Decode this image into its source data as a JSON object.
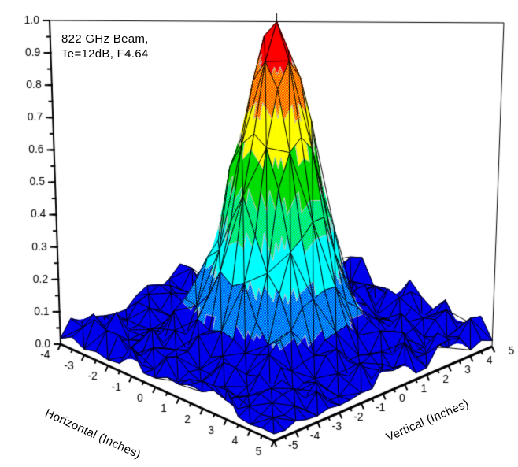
{
  "annotation": {
    "line1": "822 GHz Beam,",
    "line2": "Te=12dB, F4.64"
  },
  "chart_data": {
    "type": "surface3d",
    "title": "822 GHz Beam, Te=12dB, F4.64",
    "x_axis": {
      "label": "Horizontal (Inches)",
      "range": [
        -4,
        5
      ],
      "major_ticks": [
        -4,
        -3,
        -2,
        -1,
        0,
        1,
        2,
        3,
        4,
        5
      ],
      "tick_labels": [
        "-4",
        "-3",
        "-2",
        "-1",
        "0",
        "1",
        "2",
        "3",
        "4",
        "5"
      ],
      "minor_tick_step": 0.5
    },
    "y_axis": {
      "label": "Vertical (Inches)",
      "range": [
        -5,
        5
      ],
      "major_ticks": [
        -5,
        -4,
        -3,
        -2,
        -1,
        0,
        1,
        2,
        3,
        4,
        5
      ],
      "tick_labels": [
        "-5",
        "-4",
        "-3",
        "-2",
        "-1",
        "0",
        "1",
        "2",
        "3",
        "4",
        "5"
      ],
      "minor_tick_step": 0.5
    },
    "z_axis": {
      "label": "",
      "range": [
        0,
        1
      ],
      "major_ticks": [
        0,
        0.1,
        0.2,
        0.3,
        0.4,
        0.5,
        0.6,
        0.7,
        0.8,
        0.9,
        1.0
      ],
      "tick_labels": [
        "0.0",
        "0.1",
        "0.2",
        "0.3",
        "0.4",
        "0.5",
        "0.6",
        "0.7",
        "0.8",
        "0.9",
        "1.0"
      ],
      "minor_tick_step": 0.05
    },
    "surface_model": {
      "description": "Gaussian far-field beam profile (normalized power) on a noisy floor",
      "peak_amplitude": 0.96,
      "peak_center": {
        "horizontal": 0.5,
        "vertical": 0.0
      },
      "sigma_inches": 1.15,
      "noise_floor": 0.018,
      "noise_amplitude": 0.08,
      "grid_step_inches": 0.5
    },
    "color_bands": [
      {
        "z_min": 0.0,
        "z_max": 0.125,
        "style": "solid",
        "color": "#0000EE"
      },
      {
        "z_min": 0.125,
        "z_max": 0.25,
        "style": "dither",
        "color": "#0000EE",
        "color2": "#00FFFF"
      },
      {
        "z_min": 0.25,
        "z_max": 0.375,
        "style": "solid",
        "color": "#00FFFF"
      },
      {
        "z_min": 0.375,
        "z_max": 0.5,
        "style": "dither",
        "color": "#00DD00",
        "color2": "#00FFFF"
      },
      {
        "z_min": 0.5,
        "z_max": 0.625,
        "style": "solid",
        "color": "#00DD00"
      },
      {
        "z_min": 0.625,
        "z_max": 0.75,
        "style": "solid",
        "color": "#FFFF00"
      },
      {
        "z_min": 0.75,
        "z_max": 0.875,
        "style": "dither",
        "color": "#FF0000",
        "color2": "#FFFF00"
      },
      {
        "z_min": 0.875,
        "z_max": 1.0,
        "style": "solid",
        "color": "#FF0000"
      }
    ],
    "mesh_color": "#000000",
    "contour_line_color": "#C8C8C8",
    "axis_color": "#000000",
    "background_color": "#FFFFFF",
    "legend": "none",
    "grid": false
  }
}
